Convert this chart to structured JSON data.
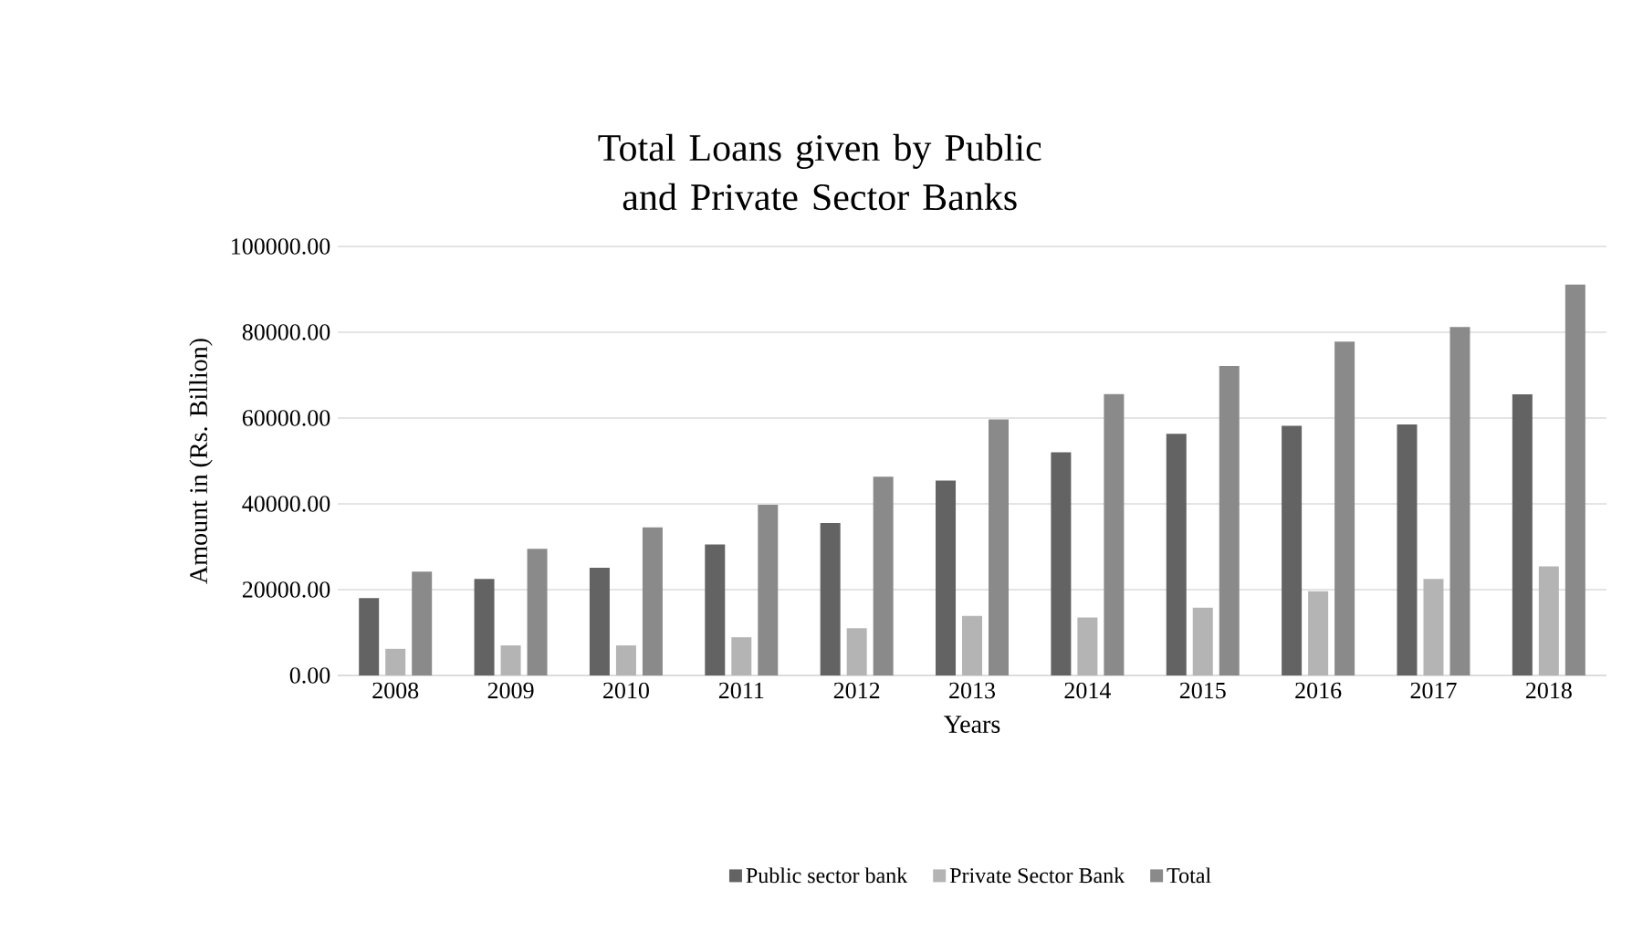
{
  "chart_data": {
    "type": "bar",
    "title": "Total Loans given by Public and Private Sector Banks",
    "xlabel": "Years",
    "ylabel": "Amount in (Rs. Billion)",
    "categories": [
      "2008",
      "2009",
      "2010",
      "2011",
      "2012",
      "2013",
      "2014",
      "2015",
      "2016",
      "2017",
      "2018"
    ],
    "series": [
      {
        "name": "Public sector bank",
        "color": "#636363",
        "values": [
          18000,
          22500,
          25100,
          30500,
          35500,
          45400,
          52000,
          56300,
          58200,
          58500,
          65500
        ]
      },
      {
        "name": "Private Sector Bank",
        "color": "#b4b4b4",
        "values": [
          6200,
          7000,
          7000,
          8900,
          11000,
          13900,
          13500,
          15800,
          19600,
          22500,
          25400
        ]
      },
      {
        "name": "Total",
        "color": "#8a8a8a",
        "values": [
          24200,
          29500,
          34500,
          39800,
          46300,
          59700,
          65600,
          72100,
          77800,
          81200,
          91100
        ]
      }
    ],
    "ylim": [
      0,
      100000
    ],
    "yticks": [
      {
        "value": 0,
        "label": "0.00"
      },
      {
        "value": 20000,
        "label": "20000.00"
      },
      {
        "value": 40000,
        "label": "40000.00"
      },
      {
        "value": 60000,
        "label": "60000.00"
      },
      {
        "value": 80000,
        "label": "80000.00"
      },
      {
        "value": 100000,
        "label": "100000.00"
      }
    ],
    "grid": "y",
    "legend": "bottom"
  }
}
